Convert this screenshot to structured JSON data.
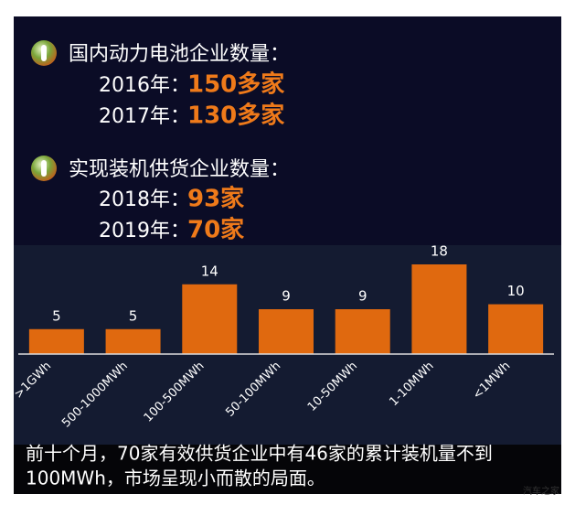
{
  "sections": [
    {
      "heading": "国内动力电池企业数量：",
      "rows": [
        {
          "label": "2016年：",
          "value": "150多家"
        },
        {
          "label": "2017年：",
          "value": "130多家"
        }
      ]
    },
    {
      "heading": "实现装机供货企业数量：",
      "rows": [
        {
          "label": "2018年：",
          "value": "93家"
        },
        {
          "label": "2019年：",
          "value": "70家"
        }
      ]
    }
  ],
  "chart_data": {
    "type": "bar",
    "categories": [
      ">1GWh",
      "500-1000MWh",
      "100-500MWh",
      "50-100MWh",
      "10-50MWh",
      "1-10MWh",
      "<1MWh"
    ],
    "values": [
      5,
      5,
      14,
      9,
      9,
      18,
      10
    ],
    "color": "#e0690f",
    "ylim": [
      0,
      18
    ]
  },
  "caption": [
    "前十个月，70家有效供货企业中有46家的累计装机量不到",
    "100MWh，市场呈现小而散的局面。"
  ],
  "watermark": "汽车之家"
}
